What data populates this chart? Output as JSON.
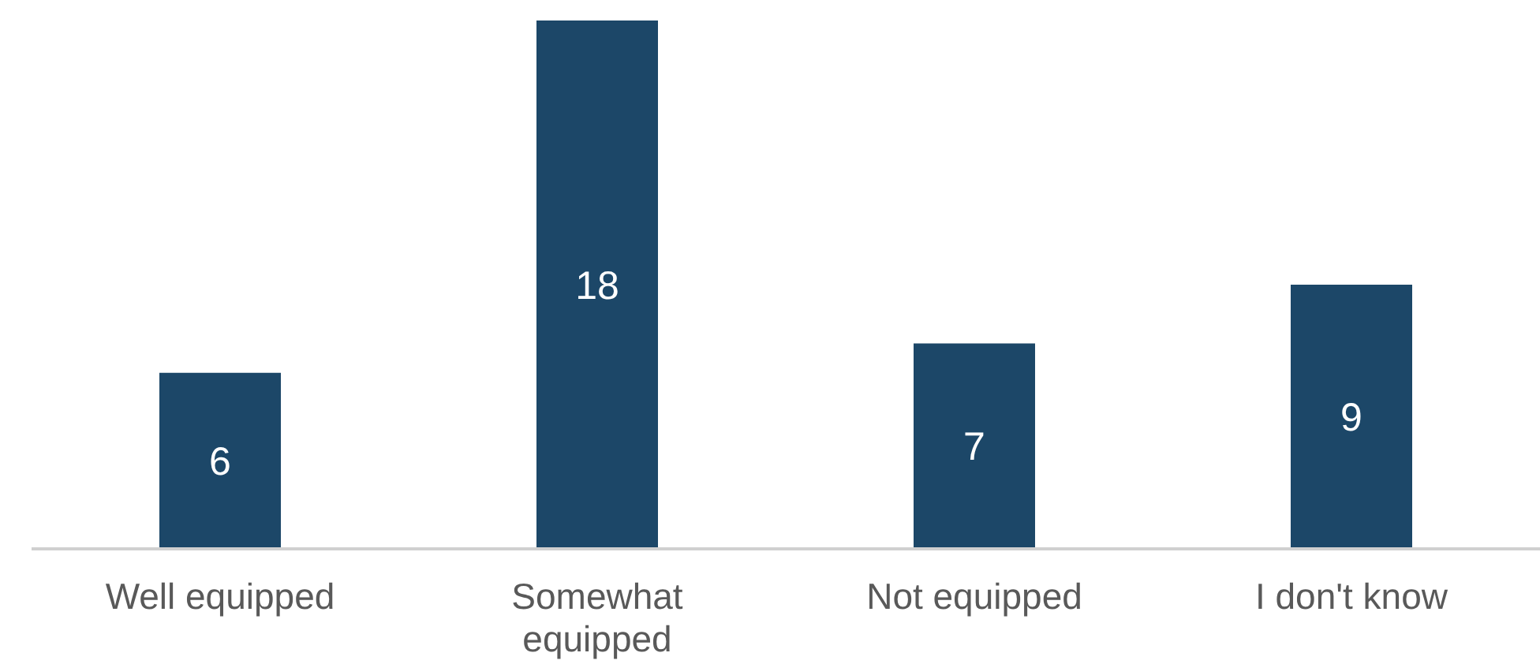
{
  "chart_data": {
    "type": "bar",
    "categories": [
      "Well equipped",
      "Somewhat equipped",
      "Not equipped",
      "I don't know"
    ],
    "values": [
      6,
      18,
      7,
      9
    ],
    "color": "#1c4768",
    "data_labels": true,
    "grid": false,
    "legend": false
  }
}
